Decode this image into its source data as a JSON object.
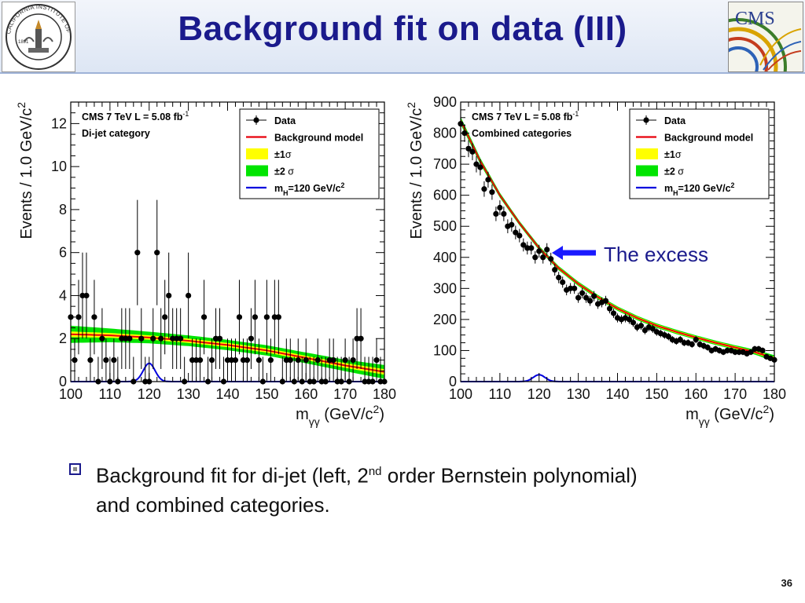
{
  "slide": {
    "title": "Background fit on data (III)",
    "page_number": "36",
    "bullet": {
      "part1": "Background fit for di-jet (left, 2",
      "sup": "nd",
      "part2": " order Bernstein polynomial)",
      "line2": "and combined categories."
    },
    "annotation": "The excess",
    "colors": {
      "title": "#1a1a8c",
      "arrow": "#1a1aff"
    }
  },
  "chart_data": [
    {
      "type": "scatter",
      "title": "CMS 7 TeV L = 5.08 fb",
      "title_sup": "-1",
      "subtitle": "Di-jet category",
      "xlabel": "m",
      "xlabel_sub": "γγ",
      "xlabel_unit": " (GeV/c",
      "xlabel_unit_sup": "2",
      "xlabel_close": ")",
      "ylabel": "Events / 1.0 GeV/c",
      "ylabel_sup": "2",
      "xlim": [
        100,
        180
      ],
      "ylim": [
        0,
        13
      ],
      "xticks": [
        100,
        110,
        120,
        130,
        140,
        150,
        160,
        170,
        180
      ],
      "yticks": [
        0,
        2,
        4,
        6,
        8,
        10,
        12
      ],
      "legend_position": "top-right",
      "legend": [
        {
          "label": "Data",
          "kind": "data"
        },
        {
          "label": "Background model",
          "kind": "line",
          "color": "#e8000b"
        },
        {
          "label": "±1",
          "sym": "σ",
          "kind": "box",
          "color": "#ffff00"
        },
        {
          "label": "±2",
          "sym": " σ",
          "kind": "box",
          "color": "#00e400"
        },
        {
          "label": "m",
          "sub": "H",
          "rest": "=120 GeV/c",
          "sup": "2",
          "kind": "line",
          "color": "#0000dd"
        }
      ],
      "data": {
        "x": [
          100,
          101,
          102,
          103,
          104,
          105,
          106,
          107,
          108,
          109,
          110,
          111,
          112,
          113,
          114,
          115,
          116,
          117,
          118,
          119,
          120,
          121,
          122,
          123,
          124,
          125,
          126,
          127,
          128,
          129,
          130,
          131,
          132,
          133,
          134,
          135,
          136,
          137,
          138,
          139,
          140,
          141,
          142,
          143,
          144,
          145,
          146,
          147,
          148,
          149,
          150,
          151,
          152,
          153,
          154,
          155,
          156,
          157,
          158,
          159,
          160,
          161,
          162,
          163,
          164,
          165,
          166,
          167,
          168,
          169,
          170,
          171,
          172,
          173,
          174,
          175,
          176,
          177,
          178,
          179,
          180
        ],
        "y": [
          3,
          1,
          3,
          4,
          4,
          1,
          3,
          0,
          2,
          1,
          0,
          1,
          0,
          2,
          2,
          2,
          0,
          6,
          2,
          0,
          0,
          2,
          6,
          2,
          3,
          4,
          2,
          2,
          2,
          0,
          4,
          1,
          1,
          1,
          3,
          0,
          1,
          2,
          2,
          0,
          1,
          1,
          1,
          3,
          1,
          1,
          2,
          3,
          1,
          0,
          3,
          1,
          3,
          3,
          0,
          1,
          1,
          0,
          1,
          0,
          1,
          0,
          0,
          1,
          0,
          0,
          1,
          1,
          0,
          0,
          1,
          0,
          1,
          2,
          2,
          0,
          0,
          0,
          1,
          0,
          0
        ]
      },
      "background": {
        "x": [
          100,
          110,
          120,
          130,
          140,
          150,
          160,
          170,
          180
        ],
        "y": [
          2.2,
          2.15,
          2.05,
          1.9,
          1.7,
          1.45,
          1.1,
          0.75,
          0.45
        ],
        "sigma1": [
          0.13,
          0.11,
          0.1,
          0.1,
          0.1,
          0.1,
          0.1,
          0.11,
          0.13
        ],
        "sigma2": [
          0.4,
          0.32,
          0.27,
          0.25,
          0.24,
          0.24,
          0.25,
          0.27,
          0.32
        ]
      },
      "signal": {
        "mass": 120,
        "peak": 0.85,
        "width": 1.5
      }
    },
    {
      "type": "scatter",
      "title": "CMS 7 TeV L = 5.08 fb",
      "title_sup": "-1",
      "subtitle": "Combined categories",
      "xlabel": "m",
      "xlabel_sub": "γγ",
      "xlabel_unit": " (GeV/c",
      "xlabel_unit_sup": "2",
      "xlabel_close": ")",
      "ylabel": "Events / 1.0 GeV/c",
      "ylabel_sup": "2",
      "xlim": [
        100,
        180
      ],
      "ylim": [
        0,
        900
      ],
      "xticks": [
        100,
        110,
        120,
        130,
        140,
        150,
        160,
        170,
        180
      ],
      "yticks": [
        0,
        100,
        200,
        300,
        400,
        500,
        600,
        700,
        800,
        900
      ],
      "legend_position": "top-right",
      "legend": [
        {
          "label": "Data",
          "kind": "data"
        },
        {
          "label": "Background model",
          "kind": "line",
          "color": "#e8000b"
        },
        {
          "label": "±1",
          "sym": "σ",
          "kind": "box",
          "color": "#ffff00"
        },
        {
          "label": "±2",
          "sym": " σ",
          "kind": "box",
          "color": "#00e400"
        },
        {
          "label": "m",
          "sub": "H",
          "rest": "=120 GeV/c",
          "sup": "2",
          "kind": "line",
          "color": "#0000dd"
        }
      ],
      "data": {
        "x": [
          100,
          101,
          102,
          103,
          104,
          105,
          106,
          107,
          108,
          109,
          110,
          111,
          112,
          113,
          114,
          115,
          116,
          117,
          118,
          119,
          120,
          121,
          122,
          123,
          124,
          125,
          126,
          127,
          128,
          129,
          130,
          131,
          132,
          133,
          134,
          135,
          136,
          137,
          138,
          139,
          140,
          141,
          142,
          143,
          144,
          145,
          146,
          147,
          148,
          149,
          150,
          151,
          152,
          153,
          154,
          155,
          156,
          157,
          158,
          159,
          160,
          161,
          162,
          163,
          164,
          165,
          166,
          167,
          168,
          169,
          170,
          171,
          172,
          173,
          174,
          175,
          176,
          177,
          178,
          179,
          180
        ],
        "y": [
          830,
          800,
          750,
          740,
          700,
          690,
          620,
          650,
          610,
          540,
          560,
          540,
          500,
          505,
          480,
          470,
          440,
          430,
          430,
          400,
          420,
          400,
          425,
          395,
          360,
          335,
          320,
          295,
          300,
          300,
          270,
          285,
          270,
          260,
          275,
          250,
          255,
          260,
          235,
          220,
          205,
          200,
          205,
          200,
          190,
          175,
          180,
          165,
          175,
          170,
          160,
          155,
          150,
          145,
          135,
          130,
          135,
          125,
          125,
          120,
          135,
          120,
          115,
          110,
          100,
          105,
          100,
          95,
          100,
          100,
          95,
          95,
          95,
          90,
          95,
          105,
          105,
          100,
          80,
          75,
          70
        ]
      },
      "background": {
        "x": [
          100,
          105,
          110,
          115,
          120,
          125,
          130,
          135,
          140,
          145,
          150,
          155,
          160,
          165,
          170,
          175,
          180
        ],
        "y": [
          840,
          710,
          600,
          510,
          430,
          365,
          315,
          272,
          235,
          205,
          180,
          160,
          142,
          125,
          110,
          95,
          75
        ],
        "sigma1": [
          6,
          5,
          4,
          4,
          4,
          4,
          4,
          4,
          4,
          4,
          4,
          4,
          4,
          4,
          4,
          4,
          5
        ],
        "sigma2": [
          12,
          10,
          8,
          7,
          7,
          7,
          7,
          7,
          7,
          7,
          7,
          7,
          7,
          7,
          7,
          8,
          10
        ]
      },
      "signal": {
        "mass": 120,
        "peak": 22,
        "width": 1.5
      }
    }
  ]
}
